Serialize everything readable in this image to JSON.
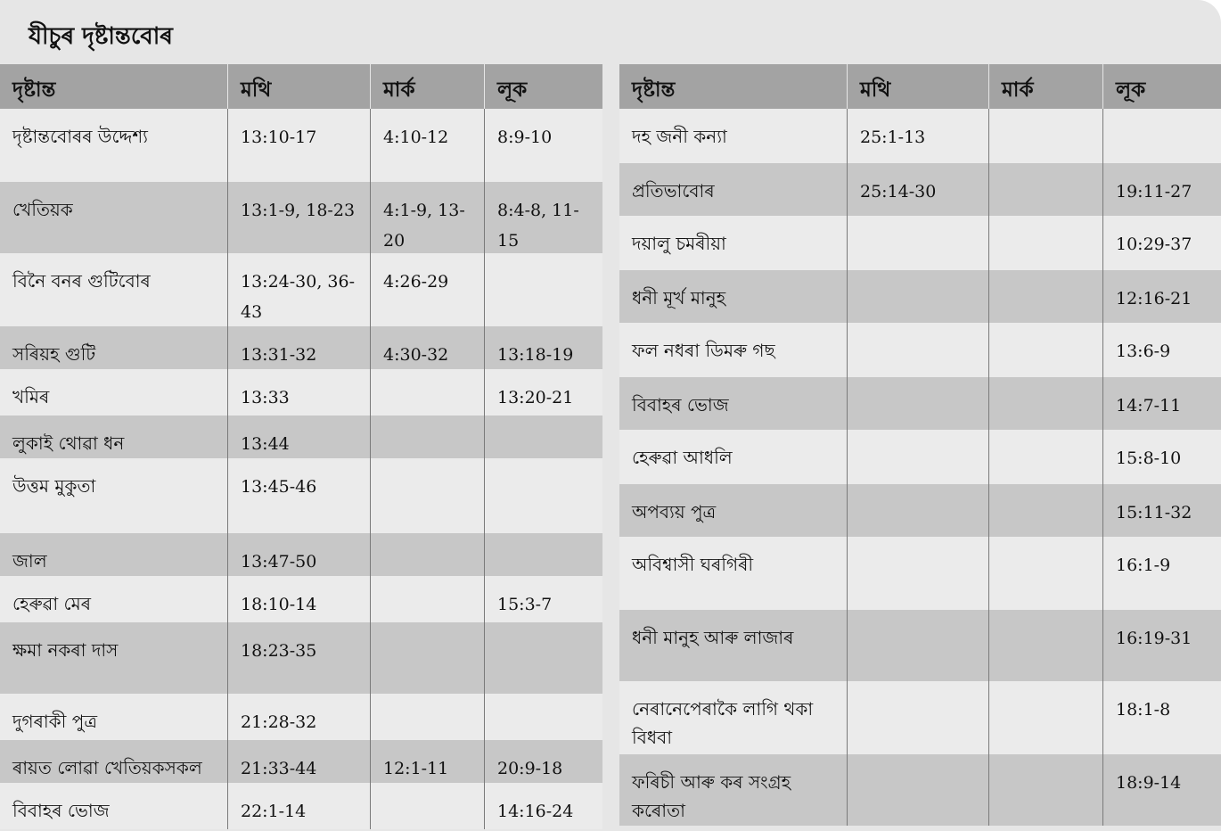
{
  "title": "যীচুৰ দৃষ্টান্তবোৰ",
  "headers": [
    "দৃষ্টান্ত",
    "মথি",
    "মাৰ্ক",
    "লূক"
  ],
  "left_rows": [
    {
      "parable": "দৃষ্টান্তবোৰৰ উদ্দেশ্য",
      "matthew": "13:10-17",
      "mark": "4:10-12",
      "luke": "8:9-10"
    },
    {
      "parable": "খেতিয়ক",
      "matthew": "13:1-9, 18-23",
      "mark": "4:1-9, 13-20",
      "luke": "8:4-8, 11-15"
    },
    {
      "parable": "বিনৈ বনৰ গুটিবোৰ",
      "matthew": "13:24-30, 36-43",
      "mark": "4:26-29",
      "luke": ""
    },
    {
      "parable": "সৰিয়হ গুটি",
      "matthew": "13:31-32",
      "mark": "4:30-32",
      "luke": "13:18-19"
    },
    {
      "parable": "খমিৰ",
      "matthew": "13:33",
      "mark": "",
      "luke": "13:20-21"
    },
    {
      "parable": "লুকাই থোৱা ধন",
      "matthew": "13:44",
      "mark": "",
      "luke": ""
    },
    {
      "parable": "উত্তম মুকুতা",
      "matthew": "13:45-46",
      "mark": "",
      "luke": ""
    },
    {
      "parable": "জাল",
      "matthew": "13:47-50",
      "mark": "",
      "luke": ""
    },
    {
      "parable": "হেৰুৱা মেৰ",
      "matthew": "18:10-14",
      "mark": "",
      "luke": "15:3-7"
    },
    {
      "parable": "ক্ষমা নকৰা দাস",
      "matthew": "18:23-35",
      "mark": "",
      "luke": ""
    },
    {
      "parable": "দুগৰাকী পুত্ৰ",
      "matthew": "21:28-32",
      "mark": "",
      "luke": ""
    },
    {
      "parable": "ৰায়ত লোৱা খেতিয়কসকল",
      "matthew": "21:33-44",
      "mark": "12:1-11",
      "luke": "20:9-18"
    },
    {
      "parable": "বিবাহৰ ভোজ",
      "matthew": "22:1-14",
      "mark": "",
      "luke": "14:16-24"
    }
  ],
  "right_rows": [
    {
      "parable": "দহ জনী কন্যা",
      "matthew": "25:1-13",
      "mark": "",
      "luke": ""
    },
    {
      "parable": "প্ৰতিভাবোৰ",
      "matthew": "25:14-30",
      "mark": "",
      "luke": "19:11-27"
    },
    {
      "parable": "দয়ালু চমৰীয়া",
      "matthew": "",
      "mark": "",
      "luke": "10:29-37"
    },
    {
      "parable": "ধনী মূৰ্খ মানুহ",
      "matthew": "",
      "mark": "",
      "luke": "12:16-21"
    },
    {
      "parable": "ফল নধৰা ডিমৰু গছ",
      "matthew": "",
      "mark": "",
      "luke": "13:6-9"
    },
    {
      "parable": "বিবাহৰ ভোজ",
      "matthew": "",
      "mark": "",
      "luke": "14:7-11"
    },
    {
      "parable": "হেৰুৱা আধলি",
      "matthew": "",
      "mark": "",
      "luke": "15:8-10"
    },
    {
      "parable": "অপব্যয় পুত্ৰ",
      "matthew": "",
      "mark": "",
      "luke": "15:11-32"
    },
    {
      "parable": "অবিশ্বাসী ঘৰগিৰী",
      "matthew": "",
      "mark": "",
      "luke": "16:1-9"
    },
    {
      "parable": "ধনী মানুহ আৰু লাজাৰ",
      "matthew": "",
      "mark": "",
      "luke": "16:19-31"
    },
    {
      "parable": "নেৰানেপেৰাকৈ লাগি থকা বিধবা",
      "matthew": "",
      "mark": "",
      "luke": "18:1-8"
    },
    {
      "parable": "ফৰিচী আৰু কৰ সংগ্ৰহ কৰোতা",
      "matthew": "",
      "mark": "",
      "luke": "18:9-14"
    }
  ]
}
